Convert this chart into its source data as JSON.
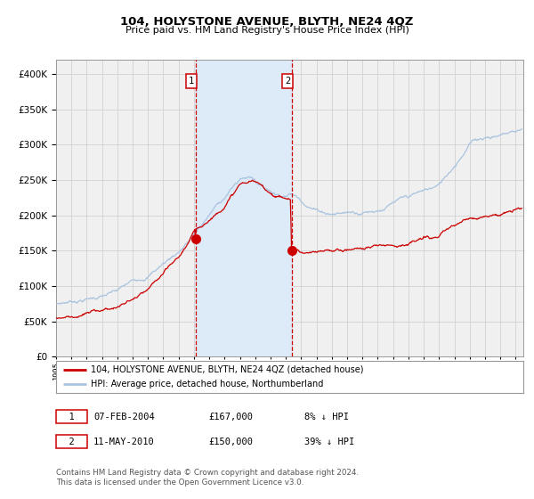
{
  "title": "104, HOLYSTONE AVENUE, BLYTH, NE24 4QZ",
  "subtitle": "Price paid vs. HM Land Registry's House Price Index (HPI)",
  "legend_line1": "104, HOLYSTONE AVENUE, BLYTH, NE24 4QZ (detached house)",
  "legend_line2": "HPI: Average price, detached house, Northumberland",
  "table_row1_date": "07-FEB-2004",
  "table_row1_price": "£167,000",
  "table_row1_hpi": "8% ↓ HPI",
  "table_row2_date": "11-MAY-2010",
  "table_row2_price": "£150,000",
  "table_row2_hpi": "39% ↓ HPI",
  "footer": "Contains HM Land Registry data © Crown copyright and database right 2024.\nThis data is licensed under the Open Government Licence v3.0.",
  "hpi_color": "#aac4e0",
  "price_color": "#cc0000",
  "dot_color": "#cc0000",
  "vline_color": "#cc0000",
  "shade_color": "#ddeaf7",
  "grid_color": "#cccccc",
  "purchase1_year": 2004.1,
  "purchase2_year": 2010.37,
  "purchase1_price": 167000,
  "purchase2_price": 150000,
  "ylim_max": 420000,
  "ylim_min": 0,
  "xlim_min": 1995.0,
  "xlim_max": 2025.5,
  "background_color": "#ffffff",
  "plot_bg_color": "#f0f0f0"
}
